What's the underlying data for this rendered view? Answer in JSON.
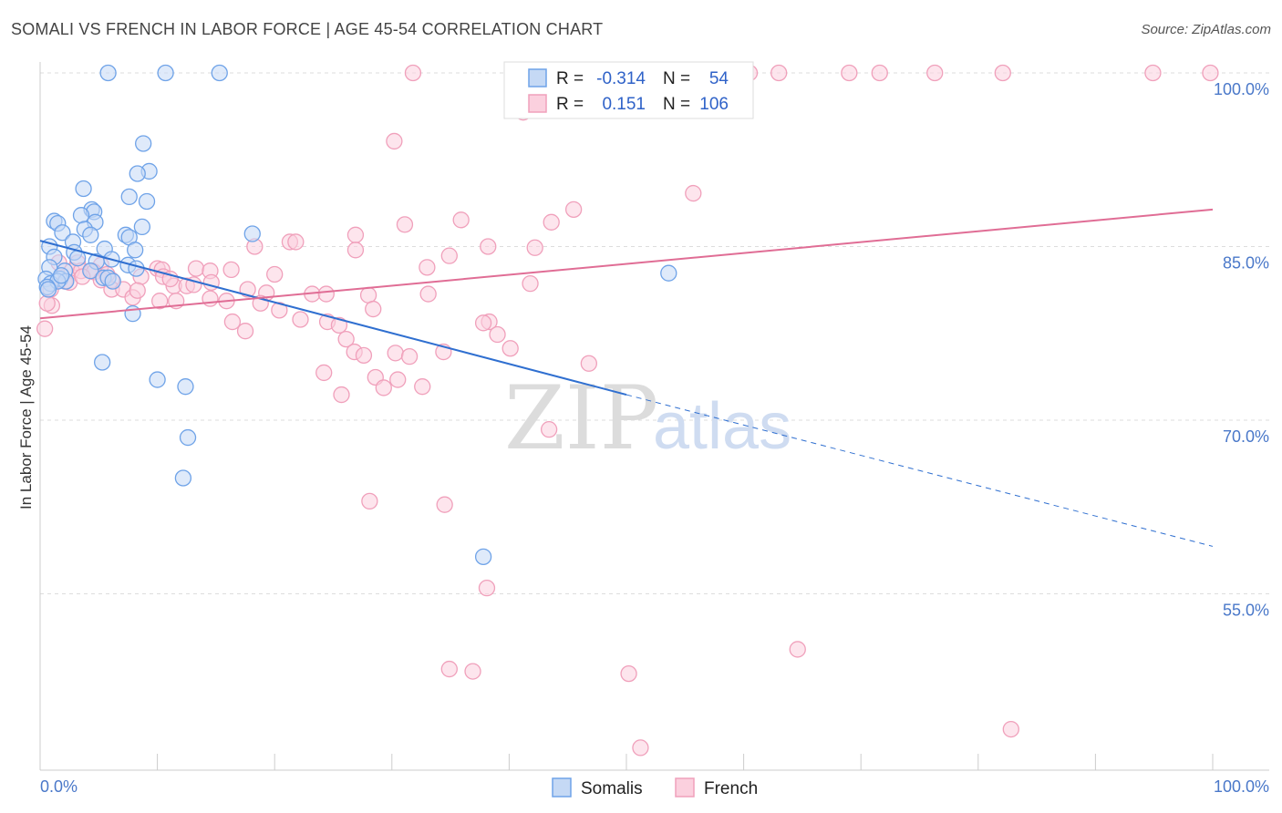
{
  "title": "SOMALI VS FRENCH IN LABOR FORCE | AGE 45-54 CORRELATION CHART",
  "source": "Source: ZipAtlas.com",
  "watermark": {
    "zip": "ZIP",
    "atlas": "atlas"
  },
  "colors": {
    "somali": "#6fa3e8",
    "somali_line": "#2f6fd0",
    "french": "#f0a0bb",
    "french_line": "#e06d95",
    "axis_label": "#4a78c9",
    "grid": "#dddddd"
  },
  "chart_data": {
    "type": "scatter",
    "xlabel": "",
    "ylabel": "In Labor Force | Age 45-54",
    "xlim": [
      0,
      100
    ],
    "ylim": [
      40,
      100
    ],
    "x_tick_labels": [
      "0.0%",
      "100.0%"
    ],
    "y_ticks": [
      {
        "value": 100,
        "label": "100.0%"
      },
      {
        "value": 85,
        "label": "85.0%"
      },
      {
        "value": 70,
        "label": "70.0%"
      },
      {
        "value": 55,
        "label": "55.0%"
      }
    ],
    "legend": {
      "rows": [
        {
          "r_label": "R =",
          "r_value": "-0.314",
          "n_label": "N =",
          "n_value": "54"
        },
        {
          "r_label": "R =",
          "r_value": "0.151",
          "n_label": "N =",
          "n_value": "106"
        }
      ]
    },
    "series": [
      {
        "name": "Somalis",
        "trend": {
          "x0": 0,
          "y0": 85.5,
          "x1": 50,
          "y1": 72.2,
          "dash_x1": 100,
          "dash_y1": 59.1
        },
        "points": [
          [
            5.8,
            100
          ],
          [
            10.7,
            100
          ],
          [
            15.3,
            100
          ],
          [
            8.8,
            93.9
          ],
          [
            9.3,
            91.5
          ],
          [
            8.3,
            91.3
          ],
          [
            3.7,
            90
          ],
          [
            9.1,
            88.9
          ],
          [
            7.6,
            89.3
          ],
          [
            4.4,
            88.2
          ],
          [
            4.6,
            88
          ],
          [
            1.2,
            87.2
          ],
          [
            3.5,
            87.7
          ],
          [
            1.5,
            87
          ],
          [
            4.7,
            87.1
          ],
          [
            8.7,
            86.7
          ],
          [
            3.8,
            86.5
          ],
          [
            4.3,
            86
          ],
          [
            1.9,
            86.2
          ],
          [
            7.3,
            86
          ],
          [
            7.6,
            85.8
          ],
          [
            18.1,
            86.1
          ],
          [
            2.8,
            85.4
          ],
          [
            0.8,
            85
          ],
          [
            5.5,
            84.8
          ],
          [
            8.1,
            84.7
          ],
          [
            2.9,
            84.5
          ],
          [
            1.2,
            84.1
          ],
          [
            3.2,
            84
          ],
          [
            4.8,
            83.7
          ],
          [
            6.1,
            83.9
          ],
          [
            7.5,
            83.4
          ],
          [
            8.2,
            83.1
          ],
          [
            0.8,
            83.2
          ],
          [
            2.1,
            82.9
          ],
          [
            4.3,
            82.9
          ],
          [
            5.4,
            82.3
          ],
          [
            5.8,
            82.3
          ],
          [
            0.5,
            82.2
          ],
          [
            1.7,
            82.2
          ],
          [
            2.2,
            82
          ],
          [
            0.9,
            81.8
          ],
          [
            1.5,
            82
          ],
          [
            53.6,
            82.7
          ],
          [
            0.6,
            81.5
          ],
          [
            0.7,
            81.3
          ],
          [
            7.9,
            79.2
          ],
          [
            5.3,
            75
          ],
          [
            10,
            73.5
          ],
          [
            12.4,
            72.9
          ],
          [
            12.6,
            68.5
          ],
          [
            12.2,
            65
          ],
          [
            37.8,
            58.2
          ],
          [
            1.8,
            82.5
          ],
          [
            6.2,
            82
          ]
        ]
      },
      {
        "name": "French",
        "trend": {
          "x0": 0,
          "y0": 78.8,
          "x1": 100,
          "y1": 88.2
        },
        "points": [
          [
            31.8,
            100
          ],
          [
            40.8,
            100
          ],
          [
            44.3,
            100
          ],
          [
            48,
            100
          ],
          [
            60.5,
            100
          ],
          [
            63,
            100
          ],
          [
            69,
            100
          ],
          [
            71.6,
            100
          ],
          [
            76.3,
            100
          ],
          [
            82.1,
            100
          ],
          [
            94.9,
            100
          ],
          [
            99.8,
            100
          ],
          [
            41.2,
            96.6
          ],
          [
            30.2,
            94.1
          ],
          [
            55.7,
            89.6
          ],
          [
            45.5,
            88.2
          ],
          [
            35.9,
            87.3
          ],
          [
            31.1,
            86.9
          ],
          [
            43.6,
            87.1
          ],
          [
            26.9,
            86
          ],
          [
            21.3,
            85.4
          ],
          [
            21.8,
            85.4
          ],
          [
            18.3,
            85
          ],
          [
            38.2,
            85
          ],
          [
            42.2,
            84.9
          ],
          [
            26.9,
            84.7
          ],
          [
            34.9,
            84.2
          ],
          [
            33,
            83.2
          ],
          [
            1.6,
            83.6
          ],
          [
            3.2,
            83.6
          ],
          [
            5.2,
            83.4
          ],
          [
            13.3,
            83.1
          ],
          [
            10,
            83.1
          ],
          [
            2.7,
            82.9
          ],
          [
            10.4,
            83
          ],
          [
            3.5,
            82.9
          ],
          [
            4.4,
            82.9
          ],
          [
            4.6,
            82.8
          ],
          [
            14.5,
            82.9
          ],
          [
            16.3,
            83
          ],
          [
            20,
            82.6
          ],
          [
            8.6,
            82.4
          ],
          [
            10.5,
            82.4
          ],
          [
            6.1,
            82.1
          ],
          [
            2.1,
            82
          ],
          [
            5.2,
            82.1
          ],
          [
            41.8,
            81.8
          ],
          [
            11.4,
            81.6
          ],
          [
            12.5,
            81.6
          ],
          [
            13.1,
            81.7
          ],
          [
            14.6,
            81.9
          ],
          [
            6.1,
            81.3
          ],
          [
            7.1,
            81.3
          ],
          [
            17.7,
            81.3
          ],
          [
            19.3,
            81
          ],
          [
            33.1,
            80.9
          ],
          [
            23.2,
            80.9
          ],
          [
            24.4,
            80.9
          ],
          [
            7.9,
            80.6
          ],
          [
            10.2,
            80.3
          ],
          [
            11.6,
            80.3
          ],
          [
            14.5,
            80.5
          ],
          [
            15.9,
            80.3
          ],
          [
            18.8,
            80.1
          ],
          [
            20.4,
            79.5
          ],
          [
            28,
            80.8
          ],
          [
            28.4,
            79.6
          ],
          [
            1,
            79.9
          ],
          [
            0.6,
            80.1
          ],
          [
            22.2,
            78.7
          ],
          [
            16.4,
            78.5
          ],
          [
            17.5,
            77.7
          ],
          [
            24.5,
            78.5
          ],
          [
            25.5,
            78.2
          ],
          [
            38.3,
            78.5
          ],
          [
            37.8,
            78.4
          ],
          [
            39,
            77.4
          ],
          [
            40.1,
            76.2
          ],
          [
            26.1,
            77
          ],
          [
            26.8,
            75.9
          ],
          [
            30.3,
            75.8
          ],
          [
            31.5,
            75.5
          ],
          [
            34.4,
            75.9
          ],
          [
            27.6,
            75.6
          ],
          [
            46.8,
            74.9
          ],
          [
            24.2,
            74.1
          ],
          [
            28.6,
            73.7
          ],
          [
            29.3,
            72.8
          ],
          [
            32.6,
            72.9
          ],
          [
            30.5,
            73.5
          ],
          [
            25.7,
            72.2
          ],
          [
            43.4,
            69.2
          ],
          [
            28.1,
            63
          ],
          [
            34.5,
            62.7
          ],
          [
            38.1,
            55.5
          ],
          [
            64.6,
            50.2
          ],
          [
            34.9,
            48.5
          ],
          [
            36.9,
            48.3
          ],
          [
            50.2,
            48.1
          ],
          [
            51.2,
            41.7
          ],
          [
            82.8,
            43.3
          ],
          [
            2.5,
            81.9
          ],
          [
            0.4,
            77.9
          ],
          [
            8.3,
            81.2
          ],
          [
            0.9,
            81.3
          ],
          [
            3.6,
            82.4
          ],
          [
            5.7,
            82.6
          ],
          [
            11.1,
            82.2
          ]
        ]
      }
    ]
  },
  "bottom_legend": [
    {
      "label": "Somalis"
    },
    {
      "label": "French"
    }
  ]
}
